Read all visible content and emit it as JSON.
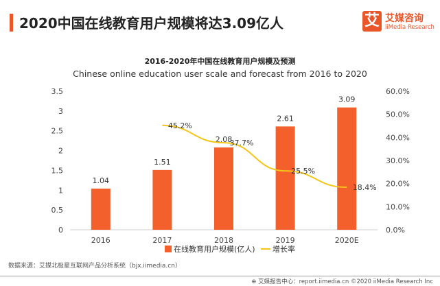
{
  "header": {
    "title": "2020中国在线教育用户规模将达3.09亿人"
  },
  "logo": {
    "mark": "艾",
    "cn": "艾媒咨询",
    "en": "iiMedia Research"
  },
  "colors": {
    "bar": "#f4602c",
    "line": "#f5c518",
    "accent": "#e8562a"
  },
  "chart_data": {
    "type": "bar+line",
    "title": "2016-2020年中国在线教育用户规模及预测",
    "subtitle": "Chinese online education user scale and forecast from 2016 to 2020",
    "categories": [
      "2016",
      "2017",
      "2018",
      "2019",
      "2020E"
    ],
    "series": [
      {
        "name": "在线教育用户规模(亿人)",
        "type": "bar",
        "axis": "left",
        "values": [
          1.04,
          1.51,
          2.08,
          2.61,
          3.09
        ],
        "labels": [
          "1.04",
          "1.51",
          "2.08",
          "2.61",
          "3.09"
        ]
      },
      {
        "name": "增长率",
        "type": "line",
        "axis": "right",
        "values": [
          null,
          45.2,
          37.7,
          25.5,
          18.4
        ],
        "labels": [
          "",
          "45.2%",
          "37.7%",
          "25.5%",
          "18.4%"
        ]
      }
    ],
    "ylim": [
      0,
      3.5
    ],
    "yticks": [
      "0",
      "0.5",
      "1",
      "1.5",
      "2",
      "2.5",
      "3",
      "3.5"
    ],
    "y2lim": [
      0,
      60
    ],
    "y2ticks": [
      "0.0%",
      "10.0%",
      "20.0%",
      "30.0%",
      "40.0%",
      "50.0%",
      "60.0%"
    ],
    "grid": false,
    "legend": "bottom"
  },
  "footer": {
    "source": "数据来源：艾媒北极星互联网产品分析系统（bjx.iimedia.cn）",
    "copyright": "艾媒报告中心：report.iimedia.cn  ©2020 iiMedia Research Inc"
  }
}
